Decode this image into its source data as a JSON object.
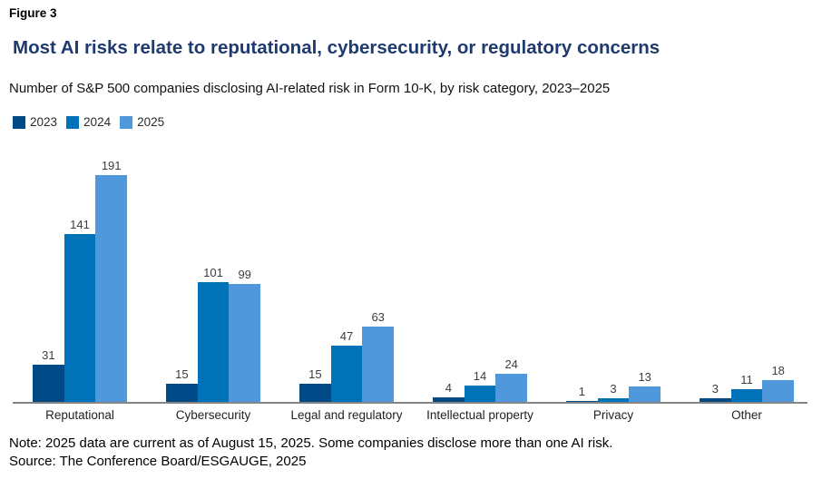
{
  "header": {
    "figure_label": "Figure 3"
  },
  "chart_data": {
    "type": "bar",
    "title": "Most AI risks relate to reputational, cybersecurity, or regulatory concerns",
    "subtitle": "Number of S&P 500 companies disclosing AI-related risk in Form 10-K, by risk category, 2023–2025",
    "categories": [
      "Reputational",
      "Cybersecurity",
      "Legal and regulatory",
      "Intellectual property",
      "Privacy",
      "Other"
    ],
    "series": [
      {
        "name": "2023",
        "color": "#004B87",
        "values": [
          31,
          15,
          15,
          4,
          1,
          3
        ]
      },
      {
        "name": "2024",
        "color": "#0072B8",
        "values": [
          141,
          101,
          47,
          14,
          3,
          11
        ]
      },
      {
        "name": "2025",
        "color": "#4F98DC",
        "values": [
          191,
          99,
          63,
          24,
          13,
          18
        ]
      }
    ],
    "xlabel": "",
    "ylabel": "",
    "ylim": [
      0,
      210
    ],
    "grid": false,
    "legend_position": "top-left",
    "value_labels": true,
    "axis_line_color": "#858585",
    "title_color": "#1f3a6e"
  },
  "footer": {
    "note": "Note: 2025 data are current as of August 15, 2025. Some companies disclose more than one AI risk.",
    "source": "Source: The Conference Board/ESGAUGE, 2025"
  }
}
